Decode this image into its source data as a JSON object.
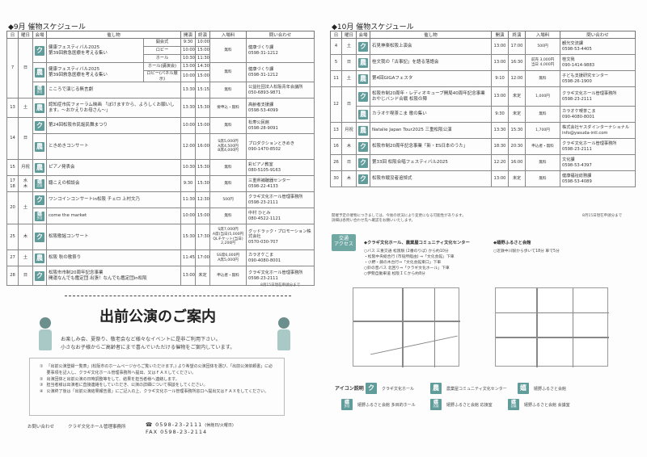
{
  "colors": {
    "venue_icon": "#5f9c9a",
    "accent": "#6fa7a3"
  },
  "headers": {
    "day": "日",
    "dow": "曜日",
    "venue": "会場",
    "event": "催し物",
    "start": "開演",
    "end": "終演",
    "fee": "入場料",
    "contact": "問い合わせ"
  },
  "sep": {
    "title": "◆9月 催物スケジュール",
    "note": "8月15日現在申請分まで",
    "days": [
      {
        "day": "7",
        "dow": "日",
        "events": [
          {
            "venue": "ク",
            "sub": "",
            "title": "健康フェスティバル2025\n第39回救急医療を考える集い",
            "parts": [
              {
                "name": "開会式",
                "start": "9:30",
                "end": "10:00"
              },
              {
                "name": "ロビー",
                "start": "10:00",
                "end": "15:00"
              },
              {
                "name": "ホール",
                "start": "10:30",
                "end": "11:30"
              }
            ],
            "fee": "無料",
            "contact": "健康づくり課\n0598-31-1212"
          },
          {
            "venue": "農",
            "sub": "",
            "title": "健康フェスティバル2025\n第39回救急医療を考える集い",
            "parts": [
              {
                "name": "ホール(講演会)",
                "start": "13:00",
                "end": "14:30"
              },
              {
                "name": "ロビー(パネル展示)",
                "start": "10:00",
                "end": "15:00"
              }
            ],
            "fee": "無料",
            "contact": "健康づくり課\n0598-31-1212"
          },
          {
            "venue": "嬉",
            "sub": "多目",
            "title": "こころで演じる無言劇",
            "start": "13:30",
            "end": "15:15",
            "fee": "無料",
            "contact": "公益社団法人松阪青年会議所\n050-6893-9871"
          }
        ]
      },
      {
        "day": "13",
        "dow": "土",
        "events": [
          {
            "venue": "農",
            "sub": "",
            "title": "認知症市民フォーラム映画 「ぼけますから、よろしくお願いします。～おかえりお母さん～」",
            "start": "13:30",
            "end": "15:30",
            "fee": "要申込・無料",
            "contact": "高齢者支援課\n0598-53-4099"
          }
        ]
      },
      {
        "day": "14",
        "dow": "日",
        "events": [
          {
            "venue": "ク",
            "sub": "",
            "title": "第24回松阪市民謡民舞まつり",
            "start": "10:00",
            "end": "15:00",
            "fee": "無料",
            "contact": "松寿公民館\n0598-28-9091"
          },
          {
            "venue": "農",
            "sub": "",
            "title": "ときめきコンサート",
            "start": "12:00",
            "end": "16:00",
            "fee": "S席5,000円\nA席4,500円\nB席4,000円",
            "contact": "プロダクションときめき\n090-1470-8502"
          }
        ]
      },
      {
        "day": "15",
        "dow": "月祝",
        "events": [
          {
            "venue": "農",
            "sub": "",
            "title": "ピアノ発表会",
            "start": "10:30",
            "end": "15:30",
            "fee": "無料",
            "contact": "彩ピアノ教室\n080-5105-9163"
          }
        ]
      },
      {
        "day": "17\n18",
        "dow": "水\n木",
        "events": [
          {
            "venue": "嬉",
            "sub": "応接",
            "title": "聴こえの相談会",
            "start": "9:30",
            "end": "15:30",
            "fee": "無料",
            "contact": "三重県補聴器センター\n0598-22-4133"
          }
        ]
      },
      {
        "day": "20",
        "dow": "土",
        "events": [
          {
            "venue": "ク",
            "sub": "",
            "title": "ワンコインコンサートin松阪 チェロ 上村文乃",
            "start": "11:30",
            "end": "12:30",
            "fee": "500円",
            "contact": "クラギ文化ホール管理事務所\n0598-23-2111"
          },
          {
            "venue": "嬉",
            "sub": "多目",
            "title": "come the market",
            "start": "10:00",
            "end": "15:00",
            "fee": "無料",
            "contact": "中村 ひとみ\n080-4522-1121"
          }
        ]
      },
      {
        "day": "25",
        "dow": "木",
        "events": [
          {
            "venue": "ク",
            "sub": "",
            "title": "松阪歌謡コンサート",
            "start": "15:30",
            "end": "17:30",
            "fee": "S席7,000円\nA席(当日)5,000円\nQLチケット(当日)\n2,200円",
            "contact": "グッドラック・プロモーション株式会社\n0570-030-707"
          }
        ]
      },
      {
        "day": "27",
        "dow": "土",
        "events": [
          {
            "venue": "農",
            "sub": "",
            "title": "松阪 秋の歌祭り",
            "start": "11:45",
            "end": "17:00",
            "fee": "SS席6,000円\nA席5,000円",
            "contact": "カラオケこま\n090-4080-8001"
          }
        ]
      },
      {
        "day": "28",
        "dow": "日",
        "events": [
          {
            "venue": "ク",
            "sub": "",
            "title": "松阪市市制20周年記念事業\n開運なんでも鑑定団 出張！なんでも鑑定団in松阪",
            "start": "13:00",
            "end": "未定",
            "fee": "申込者・無料",
            "contact": "クラギ文化ホール管理事務所\n0598-23-2111"
          }
        ]
      }
    ]
  },
  "oct": {
    "title": "◆10月 催物スケジュール",
    "note1": "開催予定の催物につきましては、今後の状況により変更になる可能性があります。\n詳細は各問い合わせ先へ確認をお願いいたします。",
    "note": "8月15日現在申請分まで",
    "days": [
      {
        "day": "4",
        "dow": "土",
        "events": [
          {
            "venue": "ク",
            "sub": "",
            "title": "石見神楽松阪上演会",
            "start": "13:00",
            "end": "17:00",
            "fee": "500円",
            "contact": "観光交流課\n0598-53-4405"
          }
        ]
      },
      {
        "day": "5",
        "dow": "日",
        "events": [
          {
            "venue": "農",
            "sub": "",
            "title": "桂文我の「古事記」を語る落語会",
            "start": "13:00",
            "end": "16:30",
            "fee": "前売 3,000円\n当日 4,000円",
            "contact": "桂文我\n090-1414-9883"
          }
        ]
      },
      {
        "day": "11",
        "dow": "土",
        "events": [
          {
            "venue": "農",
            "sub": "",
            "title": "第4回GIGAフェスタ",
            "start": "9:10",
            "end": "12:00",
            "fee": "無料",
            "contact": "子ども支援研究センター\n0598-26-1900"
          }
        ]
      },
      {
        "day": "12",
        "dow": "日",
        "events": [
          {
            "venue": "ク",
            "sub": "",
            "title": "松阪市制20周年・レディオキューブ開局40周年記念事業\nおやじバンド合戦 松阪の陣",
            "start": "13:00",
            "end": "未定",
            "fee": "1,000円",
            "contact": "クラギ文化ホール管理事務所\n0598-23-2111"
          },
          {
            "venue": "農",
            "sub": "",
            "title": "カラオケ喫茶こま 歌の集い",
            "start": "9:30",
            "end": "未定",
            "fee": "無料",
            "contact": "カラオケ喫茶こま\n090-4080-8001"
          }
        ]
      },
      {
        "day": "13",
        "dow": "月祝",
        "events": [
          {
            "venue": "農",
            "sub": "",
            "title": "Natalie Japan Tour2025 三重松阪公演",
            "start": "13:30",
            "end": "15:30",
            "fee": "1,700円",
            "contact": "株式会社ヤスダインターナショナル\ninfo@yasuda-intl.com"
          }
        ]
      },
      {
        "day": "16",
        "dow": "木",
        "events": [
          {
            "venue": "ク",
            "sub": "",
            "title": "松阪市制20周年記念事業「新・ES日本のうた」",
            "start": "18:30",
            "end": "20:30",
            "fee": "申込者・無料",
            "contact": "クラギ文化ホール管理事務所\n0598-23-2111"
          }
        ]
      },
      {
        "day": "26",
        "dow": "日",
        "events": [
          {
            "venue": "ク",
            "sub": "",
            "title": "第33回 松阪合唱フェスティバル2025",
            "start": "12:20",
            "end": "16:00",
            "fee": "無料",
            "contact": "文化課\n0598-53-4397"
          }
        ]
      },
      {
        "day": "30",
        "dow": "木",
        "events": [
          {
            "venue": "ク",
            "sub": "",
            "title": "松阪市戦没者追悼式",
            "start": "13:00",
            "end": "未定",
            "fee": "無料",
            "contact": "健康福祉総務課\n0598-53-4089"
          }
        ]
      }
    ]
  },
  "demae": {
    "title": "出前公演のご案内",
    "intro": "お楽しみ会、夏祭り、敬老会など様々なイベントに是非ご利用下さい。\n小さなお子様からご高齢者にまで喜んでいただける催物をご案内しています。",
    "items": [
      {
        "num": "①",
        "text": "「出前公演登録一覧表」(松阪市のホームページからご覧いただけます。) より希望の公演団体を選び、「出前公演依頼書」に必要事項を記入し、クラギ文化ホール管理事務所へ提出、又はＦＡＸしてください。"
      },
      {
        "num": "②",
        "text": "出演団体と出前公演の日時調整等をして、結果を担当者様へ連絡します。"
      },
      {
        "num": "③",
        "text": "担当者様は出演者に直接連絡をしていただき、公演の詳細について相談をしてください。"
      },
      {
        "num": "④",
        "text": "公演終了後は「出前公演結果報告書」にご記入の上、クラギ文化ホール管理事務所窓口へ提出又はＦＡＸをしてください。"
      }
    ],
    "contact_label": "お問い合わせ",
    "contact_org": "クラギ文化ホール管理事務所",
    "tel": "☎ 0598-23-2111",
    "closed": "(休館日/火曜日)",
    "fax": "FAX 0598-23-2114"
  },
  "access": {
    "badge": "交通\nアクセス",
    "h1": "◆クラギ文化ホール、農業屋コミュニティ文化センター",
    "t1": "○バス 三重交通 松阪駅 (2番のりば) から約10分\n・松阪中央総合行 (市役所経由) ⇒「文化会館」下車\n・小野・藤の木台行⇒「文化会館東口」下車\n○鈴の音バス 北回り⇒「クラギ文化ホール」下車\n○伊勢自動車道 松阪ＩＣから約8分",
    "h2": "◆嬉野ふるさと会館",
    "t2": "○近鉄中川駅から歩いて18分 車で5分"
  },
  "legend": {
    "title": "アイコン説明",
    "items": [
      {
        "icon": "ク",
        "sub": "",
        "label": "クラギ文化ホール"
      },
      {
        "icon": "農",
        "sub": "",
        "label": "農業屋コミュニティ文化センター"
      },
      {
        "icon": "嬉",
        "sub": "",
        "label": "嬉野ふるさと会館"
      },
      {
        "icon": "嬉",
        "sub": "多目",
        "label": "嬉野ふるさと会館 多目的ホール"
      },
      {
        "icon": "嬉",
        "sub": "応接",
        "label": "嬉野ふるさと会館 応接室"
      },
      {
        "icon": "嬉",
        "sub": "会議",
        "label": "嬉野ふるさと会館 会議室"
      }
    ]
  }
}
